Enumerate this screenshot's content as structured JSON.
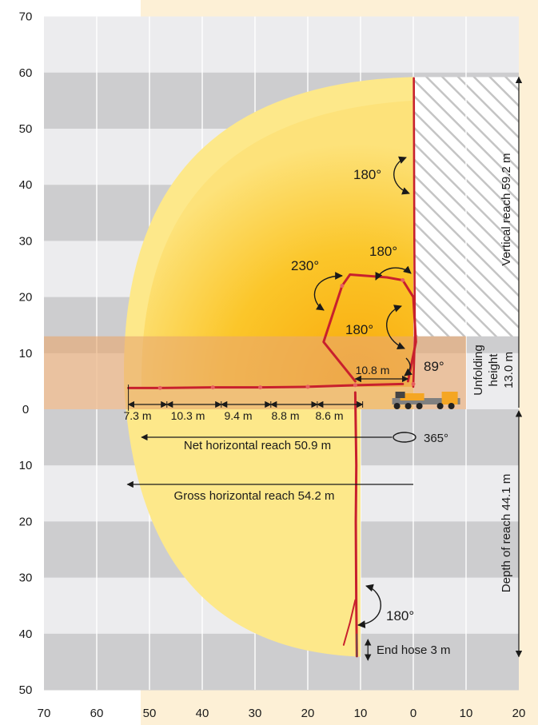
{
  "colors": {
    "band_dark": "#cdcdcf",
    "band_light": "#ececee",
    "page_bg": "#fdf0d6",
    "envelope_light": "#fde88a",
    "envelope_mid": "#fbcd2a",
    "envelope_core": "#f9ad0a",
    "unfold_band": "#e9b287",
    "boom": "#c8202d",
    "boom_light": "#e86060",
    "hatch": "#bdbdbd",
    "line": "#1a1a1a"
  },
  "chart_data": {
    "type": "diagram",
    "y_axis": {
      "range": [
        -50,
        70
      ],
      "ticks": [
        {
          "v": 70,
          "label": "70"
        },
        {
          "v": 60,
          "label": "60"
        },
        {
          "v": 50,
          "label": "50"
        },
        {
          "v": 40,
          "label": "40"
        },
        {
          "v": 30,
          "label": "30"
        },
        {
          "v": 20,
          "label": "20"
        },
        {
          "v": 10,
          "label": "10"
        },
        {
          "v": 0,
          "label": "0"
        },
        {
          "v": -10,
          "label": "10"
        },
        {
          "v": -20,
          "label": "20"
        },
        {
          "v": -30,
          "label": "30"
        },
        {
          "v": -40,
          "label": "40"
        },
        {
          "v": -50,
          "label": "50"
        }
      ]
    },
    "x_axis": {
      "range": [
        -70,
        20
      ],
      "ticks": [
        {
          "v": -70,
          "label": "70"
        },
        {
          "v": -60,
          "label": "60"
        },
        {
          "v": -50,
          "label": "50"
        },
        {
          "v": -40,
          "label": "40"
        },
        {
          "v": -30,
          "label": "30"
        },
        {
          "v": -20,
          "label": "20"
        },
        {
          "v": -10,
          "label": "10"
        },
        {
          "v": 0,
          "label": "0"
        },
        {
          "v": 10,
          "label": "10"
        },
        {
          "v": 20,
          "label": "20"
        }
      ]
    },
    "vertical_reach": {
      "label": "Vertical reach 59.2 m",
      "value": 59.2
    },
    "unfolding_height": {
      "lines": [
        "Unfolding",
        "height",
        "13.0 m"
      ],
      "value": 13.0
    },
    "depth_of_reach": {
      "label": "Depth of reach 44.1 m",
      "value": 44.1
    },
    "net_horizontal_reach": {
      "label": "Net horizontal reach 50.9 m",
      "value": 50.9
    },
    "gross_horizontal_reach": {
      "label": "Gross horizontal reach 54.2 m",
      "value": 54.2
    },
    "end_hose": {
      "label": "End hose 3 m",
      "value": 3
    },
    "boom_sections": [
      {
        "label": "7.3 m",
        "length": 7.3
      },
      {
        "label": "10.3 m",
        "length": 10.3
      },
      {
        "label": "9.4 m",
        "length": 9.4
      },
      {
        "label": "8.8 m",
        "length": 8.8
      },
      {
        "label": "8.6 m",
        "length": 8.6
      }
    ],
    "first_section": {
      "label": "10.8 m",
      "length": 10.8
    },
    "angles": [
      {
        "label": "180°",
        "value": 180
      },
      {
        "label": "180°",
        "value": 180
      },
      {
        "label": "230°",
        "value": 230
      },
      {
        "label": "180°",
        "value": 180
      },
      {
        "label": "89°",
        "value": 89
      },
      {
        "label": "365°",
        "value": 365
      },
      {
        "label": "180°",
        "value": 180
      }
    ]
  }
}
